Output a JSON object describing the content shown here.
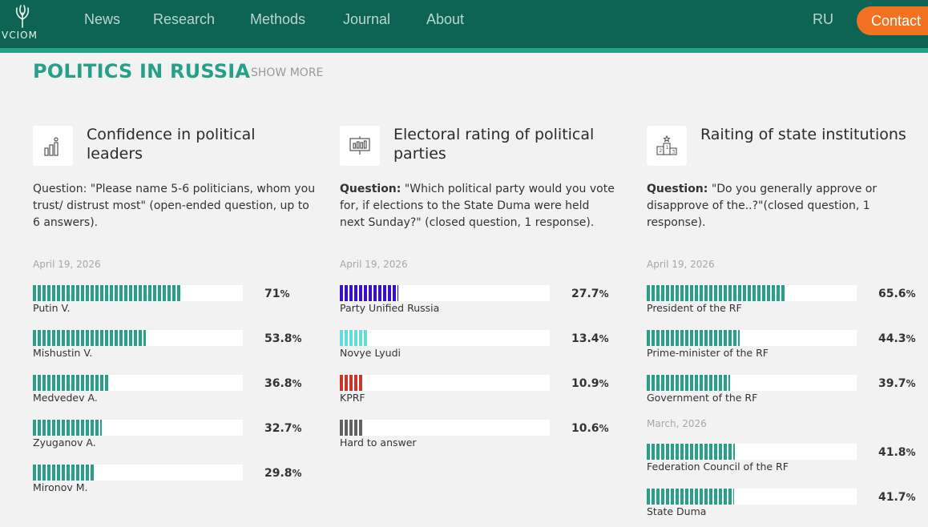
{
  "header": {
    "logo_text": "VCIOM",
    "nav": [
      "News",
      "Research",
      "Methods",
      "Journal",
      "About"
    ],
    "language": "RU",
    "contact_label": "Contact"
  },
  "section": {
    "title": "POLITICS IN RUSSIA",
    "show_more": "SHOW MORE"
  },
  "cards": [
    {
      "icon": "people-bars-icon",
      "title_lines": [
        "Confidence in political",
        "leaders"
      ],
      "question_prefix": "",
      "question": "Question: \"Please name 5-6 politicians, whom you trust/ distrust most\" (open-ended question, up to 6 answers).",
      "groups": [
        {
          "date": "April 19, 2026",
          "items": [
            {
              "label": "Putin V.",
              "value": "71",
              "fraction": 0.71,
              "color": "#27a08a"
            },
            {
              "label": "Mishustin V.",
              "value": "53.8",
              "fraction": 0.538,
              "color": "#27a08a"
            },
            {
              "label": "Medvedev A.",
              "value": "36.8",
              "fraction": 0.368,
              "color": "#27a08a"
            },
            {
              "label": "Zyuganov A.",
              "value": "32.7",
              "fraction": 0.327,
              "color": "#27a08a"
            },
            {
              "label": "Mironov M.",
              "value": "29.8",
              "fraction": 0.298,
              "color": "#27a08a"
            }
          ]
        }
      ]
    },
    {
      "icon": "presentation-board-icon",
      "title_lines": [
        "Electoral rating of political",
        "parties"
      ],
      "question_prefix": "Question:",
      "question": " \"Which political party would you vote for, if elections to the State Duma were held next Sunday?\" (closed question, 1 response).",
      "groups": [
        {
          "date": "April 19, 2026",
          "items": [
            {
              "label": "Party Unified Russia",
              "value": "27.7",
              "fraction": 0.277,
              "color": "#3b10c4"
            },
            {
              "label": "Novye Lyudi",
              "value": "13.4",
              "fraction": 0.134,
              "color": "#63ddd9"
            },
            {
              "label": "KPRF",
              "value": "10.9",
              "fraction": 0.109,
              "color": "#c8372d"
            },
            {
              "label": "Hard to answer",
              "value": "10.6",
              "fraction": 0.106,
              "color": "#616161"
            }
          ]
        }
      ]
    },
    {
      "icon": "podium-star-icon",
      "title_lines": [
        "Raiting of state institutions"
      ],
      "question_prefix": "Question:",
      "question": " \"Do you generally approve or disapprove of the..?\"(closed question, 1 response).",
      "groups": [
        {
          "date": "April 19, 2026",
          "items": [
            {
              "label": "President of the RF",
              "value": "65.6",
              "fraction": 0.656,
              "color": "#27a08a"
            },
            {
              "label": "Prime-minister of the RF",
              "value": "44.3",
              "fraction": 0.443,
              "color": "#27a08a"
            },
            {
              "label": "Government of the RF",
              "value": "39.7",
              "fraction": 0.397,
              "color": "#27a08a"
            }
          ]
        },
        {
          "date": "March, 2026",
          "items": [
            {
              "label": "Federation Council of the RF",
              "value": "41.8",
              "fraction": 0.418,
              "color": "#27a08a"
            },
            {
              "label": "State Duma",
              "value": "41.7",
              "fraction": 0.417,
              "color": "#27a08a"
            }
          ]
        }
      ]
    }
  ],
  "percent_sign": "%"
}
